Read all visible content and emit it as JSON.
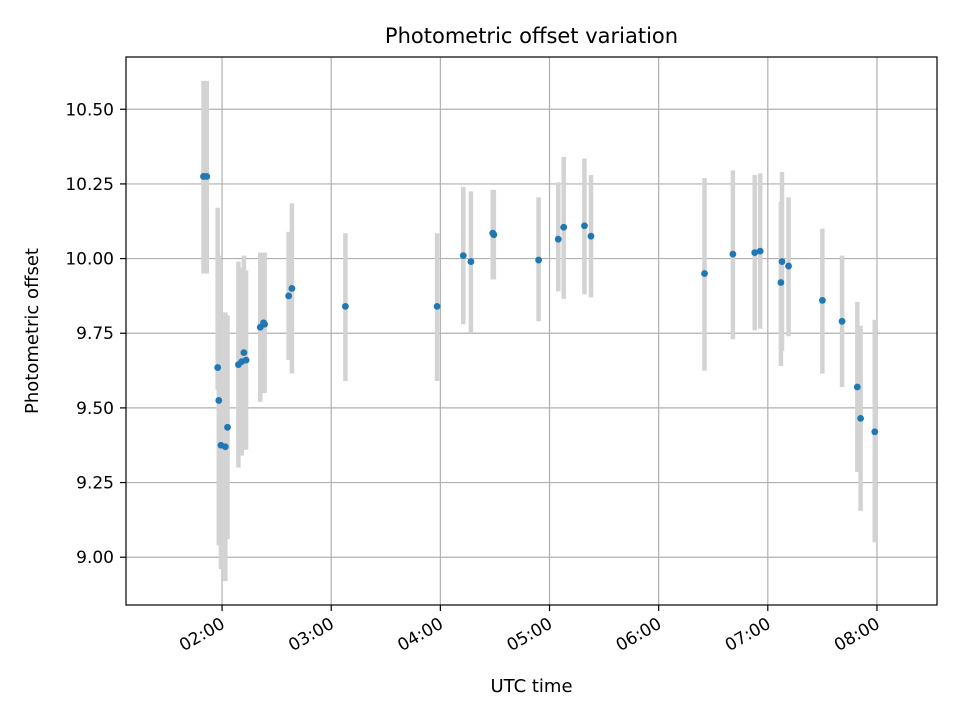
{
  "chart_data": {
    "type": "scatter",
    "title": "Photometric offset variation",
    "xlabel": "UTC time",
    "ylabel": "Photometric offset",
    "x_unit": "UTC time (hours)",
    "xlim": [
      1.12,
      8.55
    ],
    "ylim": [
      8.84,
      10.675
    ],
    "x_ticks": [
      {
        "value": 2,
        "label": "02:00"
      },
      {
        "value": 3,
        "label": "03:00"
      },
      {
        "value": 4,
        "label": "04:00"
      },
      {
        "value": 5,
        "label": "05:00"
      },
      {
        "value": 6,
        "label": "06:00"
      },
      {
        "value": 7,
        "label": "07:00"
      },
      {
        "value": 8,
        "label": "08:00"
      }
    ],
    "y_ticks": [
      {
        "value": 9.0,
        "label": "9.00"
      },
      {
        "value": 9.25,
        "label": "9.25"
      },
      {
        "value": 9.5,
        "label": "9.50"
      },
      {
        "value": 9.75,
        "label": "9.75"
      },
      {
        "value": 10.0,
        "label": "10.00"
      },
      {
        "value": 10.25,
        "label": "10.25"
      },
      {
        "value": 10.5,
        "label": "10.50"
      }
    ],
    "grid": true,
    "x_tick_rotation": 30,
    "colors": {
      "marker": "#1f77b4",
      "errorbar": "#d3d3d3",
      "grid": "#b0b0b0"
    },
    "points": [
      {
        "x": 1.83,
        "y": 10.275,
        "low": 9.95,
        "high": 10.595
      },
      {
        "x": 1.86,
        "y": 10.275,
        "low": 9.95,
        "high": 10.595
      },
      {
        "x": 1.96,
        "y": 9.635,
        "low": 9.56,
        "high": 10.17
      },
      {
        "x": 1.97,
        "y": 9.525,
        "low": 9.04,
        "high": 10.01
      },
      {
        "x": 1.99,
        "y": 9.375,
        "low": 8.96,
        "high": 9.79
      },
      {
        "x": 2.03,
        "y": 9.37,
        "low": 8.92,
        "high": 9.82
      },
      {
        "x": 2.05,
        "y": 9.435,
        "low": 9.06,
        "high": 9.81
      },
      {
        "x": 2.15,
        "y": 9.645,
        "low": 9.3,
        "high": 9.99
      },
      {
        "x": 2.18,
        "y": 9.655,
        "low": 9.34,
        "high": 9.97
      },
      {
        "x": 2.2,
        "y": 9.685,
        "low": 9.36,
        "high": 10.01
      },
      {
        "x": 2.22,
        "y": 9.66,
        "low": 9.36,
        "high": 9.96
      },
      {
        "x": 2.35,
        "y": 9.77,
        "low": 9.52,
        "high": 10.02
      },
      {
        "x": 2.38,
        "y": 9.785,
        "low": 9.55,
        "high": 10.02
      },
      {
        "x": 2.39,
        "y": 9.78,
        "low": 9.55,
        "high": 10.02
      },
      {
        "x": 2.61,
        "y": 9.875,
        "low": 9.66,
        "high": 10.09
      },
      {
        "x": 2.64,
        "y": 9.9,
        "low": 9.615,
        "high": 10.185
      },
      {
        "x": 3.13,
        "y": 9.84,
        "low": 9.59,
        "high": 10.085
      },
      {
        "x": 3.97,
        "y": 9.84,
        "low": 9.59,
        "high": 10.085
      },
      {
        "x": 4.21,
        "y": 10.01,
        "low": 9.78,
        "high": 10.24
      },
      {
        "x": 4.28,
        "y": 9.99,
        "low": 9.75,
        "high": 10.225
      },
      {
        "x": 4.48,
        "y": 10.085,
        "low": 9.93,
        "high": 10.23
      },
      {
        "x": 4.49,
        "y": 10.08,
        "low": 9.93,
        "high": 10.23
      },
      {
        "x": 4.9,
        "y": 9.995,
        "low": 9.79,
        "high": 10.205
      },
      {
        "x": 5.08,
        "y": 10.065,
        "low": 9.89,
        "high": 10.255
      },
      {
        "x": 5.13,
        "y": 10.105,
        "low": 9.865,
        "high": 10.34
      },
      {
        "x": 5.32,
        "y": 10.11,
        "low": 9.88,
        "high": 10.335
      },
      {
        "x": 5.38,
        "y": 10.075,
        "low": 9.87,
        "high": 10.28
      },
      {
        "x": 6.42,
        "y": 9.95,
        "low": 9.625,
        "high": 10.27
      },
      {
        "x": 6.68,
        "y": 10.015,
        "low": 9.73,
        "high": 10.295
      },
      {
        "x": 6.88,
        "y": 10.02,
        "low": 9.76,
        "high": 10.28
      },
      {
        "x": 6.93,
        "y": 10.025,
        "low": 9.765,
        "high": 10.285
      },
      {
        "x": 7.12,
        "y": 9.92,
        "low": 9.64,
        "high": 10.19
      },
      {
        "x": 7.13,
        "y": 9.99,
        "low": 9.69,
        "high": 10.29
      },
      {
        "x": 7.19,
        "y": 9.975,
        "low": 9.74,
        "high": 10.205
      },
      {
        "x": 7.5,
        "y": 9.86,
        "low": 9.615,
        "high": 10.1
      },
      {
        "x": 7.68,
        "y": 9.79,
        "low": 9.57,
        "high": 10.01
      },
      {
        "x": 7.82,
        "y": 9.57,
        "low": 9.285,
        "high": 9.855
      },
      {
        "x": 7.85,
        "y": 9.465,
        "low": 9.155,
        "high": 9.775
      },
      {
        "x": 7.98,
        "y": 9.42,
        "low": 9.05,
        "high": 9.795
      }
    ]
  }
}
